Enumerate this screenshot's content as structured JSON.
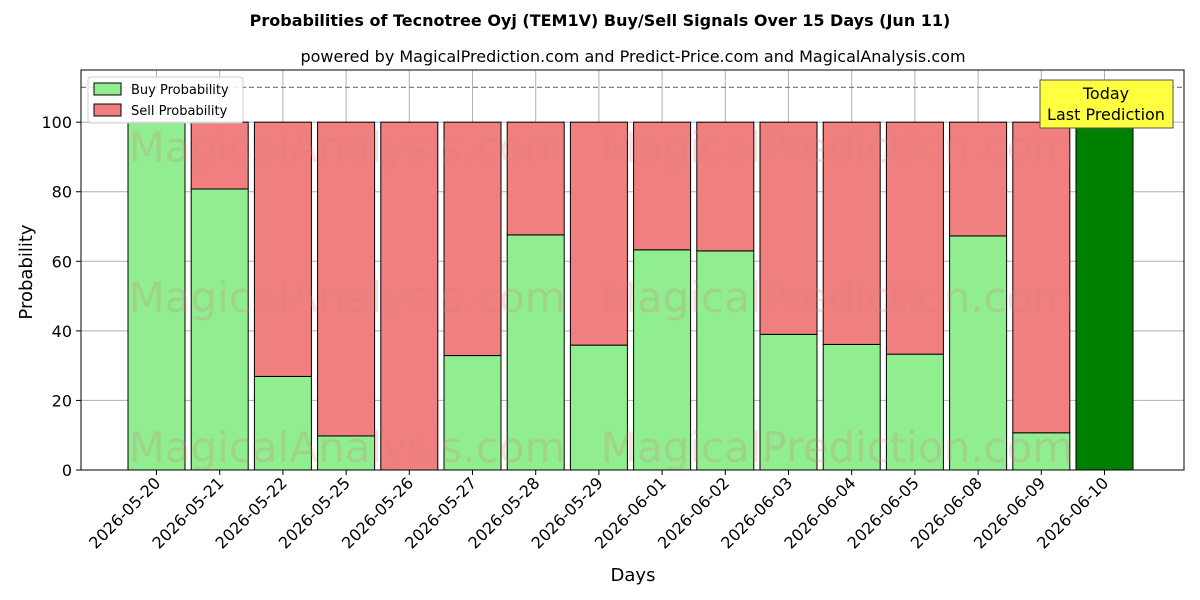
{
  "chart_data": {
    "type": "bar",
    "title": "Probabilities of Tecnotree Oyj (TEM1V) Buy/Sell Signals Over 15 Days (Jun 11)",
    "subtitle": "powered by MagicalPrediction.com and Predict-Price.com and MagicalAnalysis.com",
    "xlabel": "Days",
    "ylabel": "Probability",
    "ylim": [
      0,
      115
    ],
    "yticks": [
      0,
      20,
      40,
      60,
      80,
      100
    ],
    "reference_line": 110,
    "stacked": true,
    "grid": true,
    "legend_placement": "top-left",
    "categories": [
      "2026-05-20",
      "2026-05-21",
      "2026-05-22",
      "2026-05-25",
      "2026-05-26",
      "2026-05-27",
      "2026-05-28",
      "2026-05-29",
      "2026-06-01",
      "2026-06-02",
      "2026-06-03",
      "2026-06-04",
      "2026-06-05",
      "2026-06-08",
      "2026-06-09",
      "2026-06-10"
    ],
    "series": [
      {
        "name": "Buy Probability",
        "color": "#90ee90",
        "values": [
          100,
          80.8,
          26.9,
          9.8,
          0,
          32.9,
          67.6,
          35.9,
          63.3,
          63.0,
          39.0,
          36.1,
          33.3,
          67.3,
          10.7,
          100
        ]
      },
      {
        "name": "Sell Probability",
        "color": "#f08080",
        "values": [
          0,
          19.2,
          73.1,
          90.2,
          100,
          67.1,
          32.4,
          64.1,
          36.7,
          37.0,
          61.0,
          63.9,
          66.7,
          32.7,
          89.3,
          0
        ]
      }
    ],
    "highlight": {
      "category": "2026-06-10",
      "color": "#008000"
    },
    "annotation": {
      "lines": [
        "Today",
        "Last Prediction"
      ],
      "background": "#ffff40"
    },
    "watermarks": [
      "MagicalAnalysis.com",
      "MagicalPrediction.com"
    ]
  }
}
